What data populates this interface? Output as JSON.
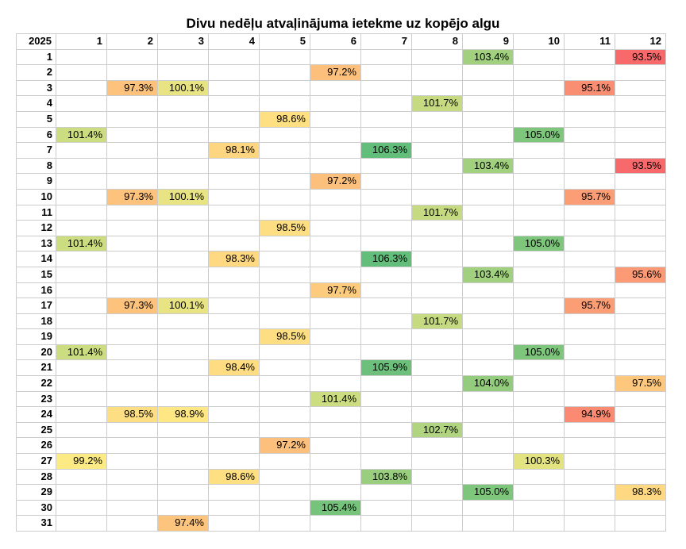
{
  "chart_data": {
    "type": "heatmap",
    "title": "Divu nedēļu atvaļinājuma ietekme uz kopējo algu",
    "corner_label": "2025",
    "x_categories": [
      "1",
      "2",
      "3",
      "4",
      "5",
      "6",
      "7",
      "8",
      "9",
      "10",
      "11",
      "12"
    ],
    "y_categories": [
      "1",
      "2",
      "3",
      "4",
      "5",
      "6",
      "7",
      "8",
      "9",
      "10",
      "11",
      "12",
      "13",
      "14",
      "15",
      "16",
      "17",
      "18",
      "19",
      "20",
      "21",
      "22",
      "23",
      "24",
      "25",
      "26",
      "27",
      "28",
      "29",
      "30",
      "31"
    ],
    "unit": "%",
    "values": [
      [
        null,
        null,
        null,
        null,
        null,
        null,
        null,
        null,
        103.4,
        null,
        null,
        93.5
      ],
      [
        null,
        null,
        null,
        null,
        null,
        97.2,
        null,
        null,
        null,
        null,
        null,
        null
      ],
      [
        null,
        97.3,
        100.1,
        null,
        null,
        null,
        null,
        null,
        null,
        null,
        95.1,
        null
      ],
      [
        null,
        null,
        null,
        null,
        null,
        null,
        null,
        101.7,
        null,
        null,
        null,
        null
      ],
      [
        null,
        null,
        null,
        null,
        98.6,
        null,
        null,
        null,
        null,
        null,
        null,
        null
      ],
      [
        101.4,
        null,
        null,
        null,
        null,
        null,
        null,
        null,
        null,
        105.0,
        null,
        null
      ],
      [
        null,
        null,
        null,
        98.1,
        null,
        null,
        106.3,
        null,
        null,
        null,
        null,
        null
      ],
      [
        null,
        null,
        null,
        null,
        null,
        null,
        null,
        null,
        103.4,
        null,
        null,
        93.5
      ],
      [
        null,
        null,
        null,
        null,
        null,
        97.2,
        null,
        null,
        null,
        null,
        null,
        null
      ],
      [
        null,
        97.3,
        100.1,
        null,
        null,
        null,
        null,
        null,
        null,
        null,
        95.7,
        null
      ],
      [
        null,
        null,
        null,
        null,
        null,
        null,
        null,
        101.7,
        null,
        null,
        null,
        null
      ],
      [
        null,
        null,
        null,
        null,
        98.5,
        null,
        null,
        null,
        null,
        null,
        null,
        null
      ],
      [
        101.4,
        null,
        null,
        null,
        null,
        null,
        null,
        null,
        null,
        105.0,
        null,
        null
      ],
      [
        null,
        null,
        null,
        98.3,
        null,
        null,
        106.3,
        null,
        null,
        null,
        null,
        null
      ],
      [
        null,
        null,
        null,
        null,
        null,
        null,
        null,
        null,
        103.4,
        null,
        null,
        95.6
      ],
      [
        null,
        null,
        null,
        null,
        null,
        97.7,
        null,
        null,
        null,
        null,
        null,
        null
      ],
      [
        null,
        97.3,
        100.1,
        null,
        null,
        null,
        null,
        null,
        null,
        null,
        95.7,
        null
      ],
      [
        null,
        null,
        null,
        null,
        null,
        null,
        null,
        101.7,
        null,
        null,
        null,
        null
      ],
      [
        null,
        null,
        null,
        null,
        98.5,
        null,
        null,
        null,
        null,
        null,
        null,
        null
      ],
      [
        101.4,
        null,
        null,
        null,
        null,
        null,
        null,
        null,
        null,
        105.0,
        null,
        null
      ],
      [
        null,
        null,
        null,
        98.4,
        null,
        null,
        105.9,
        null,
        null,
        null,
        null,
        null
      ],
      [
        null,
        null,
        null,
        null,
        null,
        null,
        null,
        null,
        104.0,
        null,
        null,
        97.5
      ],
      [
        null,
        null,
        null,
        null,
        null,
        101.4,
        null,
        null,
        null,
        null,
        null,
        null
      ],
      [
        null,
        98.5,
        98.9,
        null,
        null,
        null,
        null,
        null,
        null,
        null,
        94.9,
        null
      ],
      [
        null,
        null,
        null,
        null,
        null,
        null,
        null,
        102.7,
        null,
        null,
        null,
        null
      ],
      [
        null,
        null,
        null,
        null,
        97.2,
        null,
        null,
        null,
        null,
        null,
        null,
        null
      ],
      [
        99.2,
        null,
        null,
        null,
        null,
        null,
        null,
        null,
        null,
        100.3,
        null,
        null
      ],
      [
        null,
        null,
        null,
        98.6,
        null,
        null,
        103.8,
        null,
        null,
        null,
        null,
        null
      ],
      [
        null,
        null,
        null,
        null,
        null,
        null,
        null,
        null,
        105.0,
        null,
        null,
        98.3
      ],
      [
        null,
        null,
        null,
        null,
        null,
        105.4,
        null,
        null,
        null,
        null,
        null,
        null
      ],
      [
        null,
        null,
        97.4,
        null,
        null,
        null,
        null,
        null,
        null,
        null,
        null,
        null
      ]
    ],
    "color_scale": {
      "low": "#F8696B",
      "mid": "#FFEB84",
      "high": "#63BE7B"
    }
  }
}
